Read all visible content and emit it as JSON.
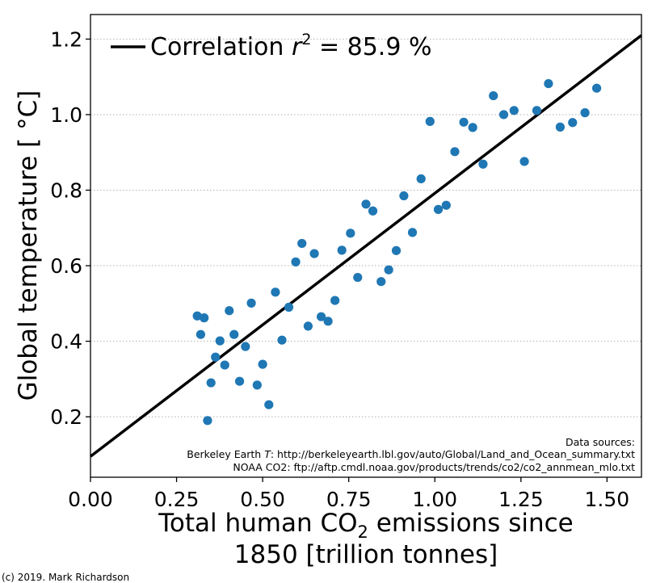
{
  "chart_data": {
    "type": "scatter",
    "xlabel_line1_pre": "Total human CO",
    "xlabel_line1_sub": "2",
    "xlabel_line1_post": " emissions since",
    "xlabel_line2": "1850 [trillion tonnes]",
    "ylabel": "Global temperature [ °C]",
    "xlim": [
      0.0,
      1.6
    ],
    "ylim": [
      0.04,
      1.265
    ],
    "x_ticks": [
      0.0,
      0.25,
      0.5,
      0.75,
      1.0,
      1.25,
      1.5
    ],
    "x_tick_labels": [
      "0.00",
      "0.25",
      "0.50",
      "0.75",
      "1.00",
      "1.25",
      "1.50"
    ],
    "y_ticks": [
      0.2,
      0.4,
      0.6,
      0.8,
      1.0,
      1.2
    ],
    "y_tick_labels": [
      "0.2",
      "0.4",
      "0.6",
      "0.8",
      "1.0",
      "1.2"
    ],
    "grid": "horizontal dotted",
    "legend_placement": "top-left",
    "legend_pre": "Correlation ",
    "legend_r": "r",
    "legend_sup": "2",
    "legend_post": " = 85.9 %",
    "point_color": "#1f77b4",
    "fit_line": {
      "x": [
        0.0,
        1.6
      ],
      "y": [
        0.095,
        1.21
      ],
      "color": "#000000"
    },
    "points": [
      {
        "x": 0.31,
        "y": 0.467
      },
      {
        "x": 0.32,
        "y": 0.418
      },
      {
        "x": 0.33,
        "y": 0.462
      },
      {
        "x": 0.34,
        "y": 0.19
      },
      {
        "x": 0.35,
        "y": 0.29
      },
      {
        "x": 0.363,
        "y": 0.358
      },
      {
        "x": 0.376,
        "y": 0.401
      },
      {
        "x": 0.39,
        "y": 0.337
      },
      {
        "x": 0.403,
        "y": 0.481
      },
      {
        "x": 0.417,
        "y": 0.418
      },
      {
        "x": 0.433,
        "y": 0.294
      },
      {
        "x": 0.45,
        "y": 0.386
      },
      {
        "x": 0.467,
        "y": 0.501
      },
      {
        "x": 0.484,
        "y": 0.284
      },
      {
        "x": 0.5,
        "y": 0.339
      },
      {
        "x": 0.518,
        "y": 0.232
      },
      {
        "x": 0.537,
        "y": 0.53
      },
      {
        "x": 0.556,
        "y": 0.403
      },
      {
        "x": 0.576,
        "y": 0.49
      },
      {
        "x": 0.596,
        "y": 0.61
      },
      {
        "x": 0.614,
        "y": 0.659
      },
      {
        "x": 0.632,
        "y": 0.44
      },
      {
        "x": 0.65,
        "y": 0.632
      },
      {
        "x": 0.67,
        "y": 0.465
      },
      {
        "x": 0.69,
        "y": 0.453
      },
      {
        "x": 0.71,
        "y": 0.508
      },
      {
        "x": 0.73,
        "y": 0.641
      },
      {
        "x": 0.755,
        "y": 0.686
      },
      {
        "x": 0.776,
        "y": 0.569
      },
      {
        "x": 0.8,
        "y": 0.763
      },
      {
        "x": 0.82,
        "y": 0.745
      },
      {
        "x": 0.844,
        "y": 0.558
      },
      {
        "x": 0.866,
        "y": 0.589
      },
      {
        "x": 0.888,
        "y": 0.64
      },
      {
        "x": 0.91,
        "y": 0.785
      },
      {
        "x": 0.935,
        "y": 0.688
      },
      {
        "x": 0.96,
        "y": 0.83
      },
      {
        "x": 0.986,
        "y": 0.982
      },
      {
        "x": 1.01,
        "y": 0.749
      },
      {
        "x": 1.033,
        "y": 0.76
      },
      {
        "x": 1.058,
        "y": 0.902
      },
      {
        "x": 1.084,
        "y": 0.98
      },
      {
        "x": 1.11,
        "y": 0.966
      },
      {
        "x": 1.14,
        "y": 0.869
      },
      {
        "x": 1.17,
        "y": 1.05
      },
      {
        "x": 1.2,
        "y": 1.0
      },
      {
        "x": 1.23,
        "y": 1.011
      },
      {
        "x": 1.26,
        "y": 0.876
      },
      {
        "x": 1.296,
        "y": 1.011
      },
      {
        "x": 1.33,
        "y": 1.082
      },
      {
        "x": 1.364,
        "y": 0.967
      },
      {
        "x": 1.4,
        "y": 0.979
      },
      {
        "x": 1.436,
        "y": 1.005
      },
      {
        "x": 1.47,
        "y": 1.07
      }
    ]
  },
  "sources": {
    "header": "Data sources:",
    "berkeley_pre": "Berkeley Earth ",
    "berkeley_t": "T",
    "berkeley_post": ": http://berkeleyearth.lbl.gov/auto/Global/Land_and_Ocean_summary.txt",
    "noaa": "NOAA CO2: ftp://aftp.cmdl.noaa.gov/products/trends/co2/co2_annmean_mlo.txt"
  },
  "credit": "(c) 2019. Mark Richardson"
}
